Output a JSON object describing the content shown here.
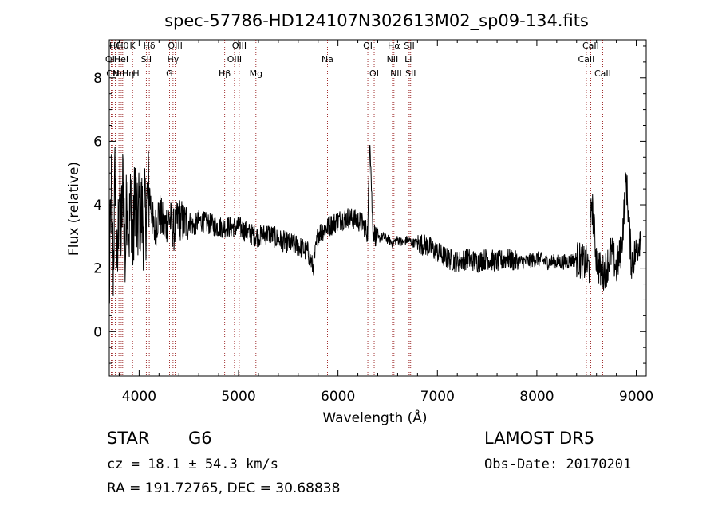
{
  "chart_data": {
    "type": "line",
    "title": "spec-57786-HD124107N302613M02_sp09-134.fits",
    "xlabel": "Wavelength (Å)",
    "ylabel": "Flux (relative)",
    "xlim": [
      3700,
      9100
    ],
    "ylim": [
      -1.4,
      9.2
    ],
    "xticks": [
      4000,
      5000,
      6000,
      7000,
      8000,
      9000
    ],
    "yticks": [
      0,
      2,
      4,
      6,
      8
    ],
    "grid": false,
    "line_color": "#000000",
    "marker_color": "#8b0000",
    "series": [
      {
        "x": [
          3700,
          3720,
          3740,
          3760,
          3780,
          3800,
          3820,
          3840,
          3860,
          3880,
          3900,
          3920,
          3940,
          3960,
          3980,
          4000,
          4050,
          4100,
          4150,
          4200,
          4250,
          4300,
          4350,
          4400,
          4450,
          4500,
          4550,
          4600,
          4700,
          4800,
          4900,
          5000,
          5100,
          5200,
          5300,
          5400,
          5500,
          5600,
          5700,
          5750,
          5800,
          5900,
          6000,
          6100,
          6200,
          6250,
          6300,
          6320,
          6350,
          6400,
          6450,
          6500,
          6550,
          6600,
          6650,
          6700,
          6750,
          6800,
          6900,
          7000,
          7100,
          7200,
          7300,
          7400,
          7500,
          7600,
          7700,
          7800,
          7900,
          8000,
          8100,
          8200,
          8300,
          8400,
          8450,
          8500,
          8530,
          8550,
          8600,
          8650,
          8700,
          8750,
          8800,
          8850,
          8900,
          8950,
          9000,
          9050
        ],
        "y": [
          1.0,
          4.5,
          2.0,
          5.2,
          1.5,
          4.8,
          3.0,
          5.0,
          2.2,
          4.6,
          3.2,
          4.2,
          2.5,
          4.8,
          3.0,
          4.0,
          3.4,
          4.5,
          3.1,
          3.8,
          3.3,
          3.6,
          3.2,
          3.6,
          3.4,
          3.5,
          3.3,
          3.5,
          3.4,
          3.3,
          3.3,
          3.3,
          3.1,
          3.0,
          3.1,
          2.9,
          2.8,
          2.7,
          2.5,
          2.0,
          3.1,
          3.3,
          3.5,
          3.6,
          3.5,
          3.4,
          3.1,
          6.3,
          3.2,
          2.9,
          3.0,
          2.9,
          2.8,
          2.9,
          2.8,
          2.9,
          2.8,
          2.8,
          2.7,
          2.5,
          2.3,
          2.2,
          2.3,
          2.2,
          2.3,
          2.2,
          2.3,
          2.2,
          2.2,
          2.3,
          2.2,
          2.2,
          2.2,
          2.3,
          2.2,
          2.1,
          2.0,
          4.2,
          2.3,
          1.8,
          2.0,
          2.5,
          2.0,
          2.6,
          4.8,
          2.2,
          2.5,
          3.2
        ]
      }
    ],
    "line_markers": [
      {
        "x": 3720,
        "label": "OII",
        "row": 1
      },
      {
        "x": 3734,
        "label": "CN",
        "row": 2
      },
      {
        "x": 3760,
        "label": "Hθ",
        "row": 0
      },
      {
        "x": 3797,
        "label": "Hη",
        "row": 2
      },
      {
        "x": 3820,
        "label": "HeI",
        "row": 1
      },
      {
        "x": 3835,
        "label": "Hθ",
        "row": 0
      },
      {
        "x": 3889,
        "label": "Hη",
        "row": 2
      },
      {
        "x": 3934,
        "label": "K",
        "row": 0
      },
      {
        "x": 3969,
        "label": "H",
        "row": 2
      },
      {
        "x": 4072,
        "label": "SII",
        "row": 1
      },
      {
        "x": 4102,
        "label": "Hδ",
        "row": 0
      },
      {
        "x": 4305,
        "label": "G",
        "row": 2
      },
      {
        "x": 4341,
        "label": "Hγ",
        "row": 1
      },
      {
        "x": 4363,
        "label": "OIII",
        "row": 0
      },
      {
        "x": 4861,
        "label": "Hβ",
        "row": 2
      },
      {
        "x": 4959,
        "label": "OIII",
        "row": 1
      },
      {
        "x": 5007,
        "label": "OIII",
        "row": 0
      },
      {
        "x": 5175,
        "label": "Mg",
        "row": 2
      },
      {
        "x": 5894,
        "label": "Na",
        "row": 1
      },
      {
        "x": 6300,
        "label": "OI",
        "row": 0
      },
      {
        "x": 6364,
        "label": "OI",
        "row": 2
      },
      {
        "x": 6548,
        "label": "NII",
        "row": 1
      },
      {
        "x": 6563,
        "label": "Hα",
        "row": 0
      },
      {
        "x": 6584,
        "label": "NII",
        "row": 2
      },
      {
        "x": 6707,
        "label": "Li",
        "row": 1
      },
      {
        "x": 6717,
        "label": "SII",
        "row": 0
      },
      {
        "x": 6731,
        "label": "SII",
        "row": 2
      },
      {
        "x": 8498,
        "label": "CaII",
        "row": 1
      },
      {
        "x": 8542,
        "label": "CaII",
        "row": 0
      },
      {
        "x": 8662,
        "label": "CaII",
        "row": 2
      }
    ]
  },
  "info": {
    "class_label": "STAR",
    "subclass": "G6",
    "cz_line": "cz = 18.1 ± 54.3 km/s",
    "coord_line": "RA = 191.72765, DEC =  30.68838",
    "survey": "LAMOST DR5",
    "obs_date": "Obs-Date: 20170201"
  }
}
